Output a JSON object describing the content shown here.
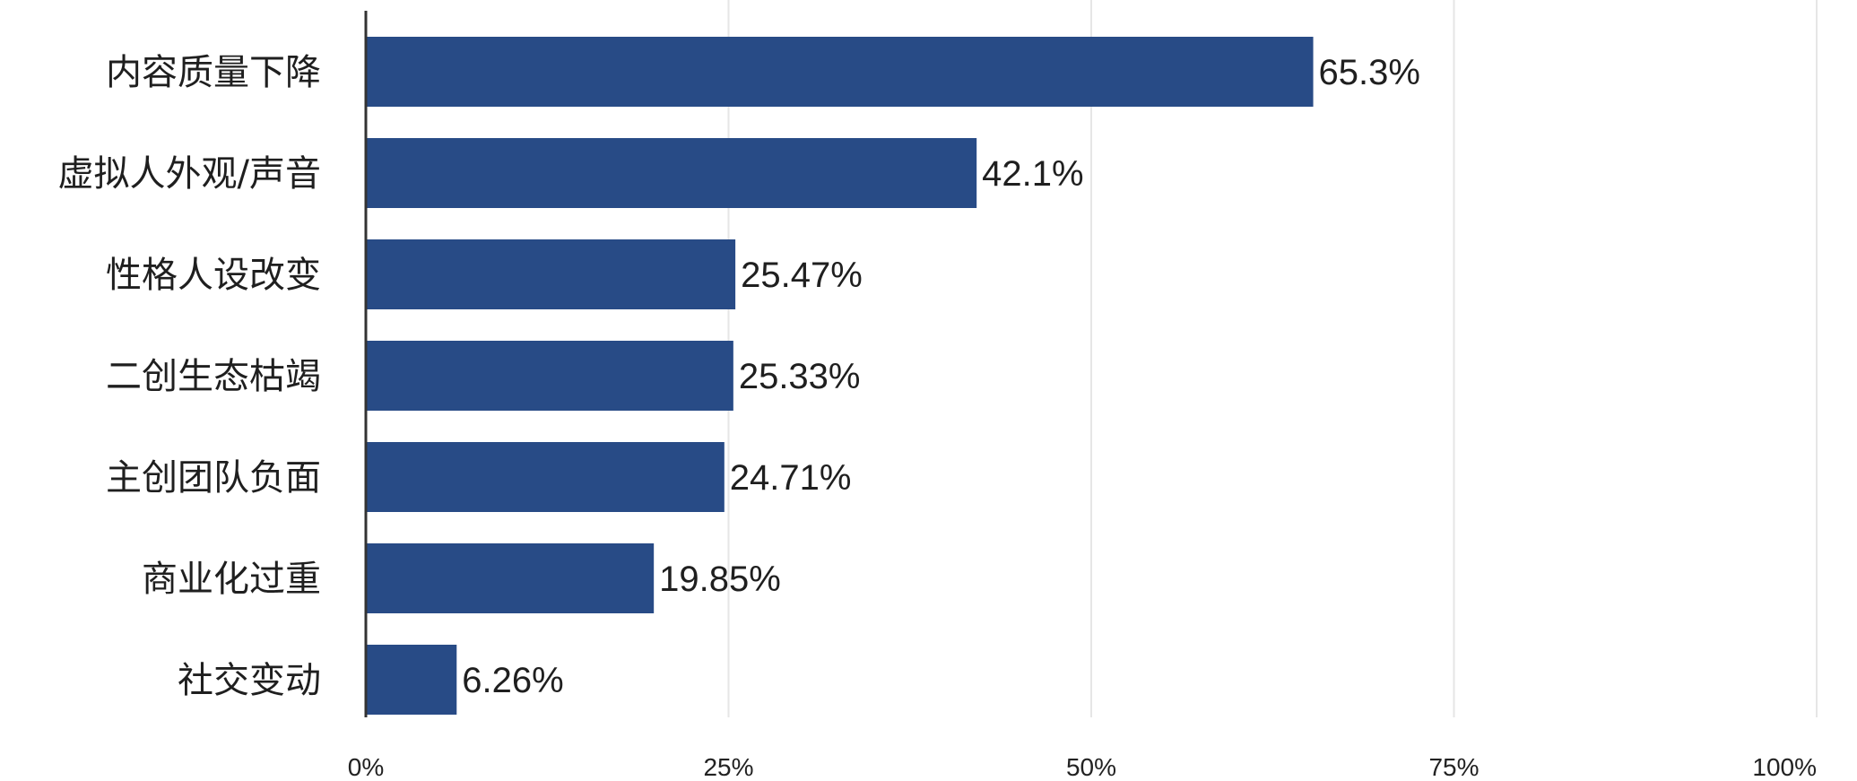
{
  "chart_data": {
    "type": "bar",
    "orientation": "horizontal",
    "categories": [
      "内容质量下降",
      "虚拟人外观/声音",
      "性格人设改变",
      "二创生态枯竭",
      "主创团队负面",
      "商业化过重",
      "社交变动"
    ],
    "values": [
      65.3,
      42.1,
      25.47,
      25.33,
      24.71,
      19.85,
      6.26
    ],
    "value_labels": [
      "65.3%",
      "42.1%",
      "25.47%",
      "25.33%",
      "24.71%",
      "19.85%",
      "6.26%"
    ],
    "x_ticks": [
      0,
      25,
      50,
      75,
      100
    ],
    "x_tick_labels": [
      "0%",
      "25%",
      "50%",
      "75%",
      "100%"
    ],
    "xlim": [
      0,
      100
    ],
    "grid": true,
    "title": "",
    "xlabel": "",
    "ylabel": ""
  },
  "colors": {
    "bar": "#284b86",
    "grid": "#e6e6e6",
    "axis": "#333333",
    "text": "#1f1f1f",
    "tick_text": "#222222"
  }
}
